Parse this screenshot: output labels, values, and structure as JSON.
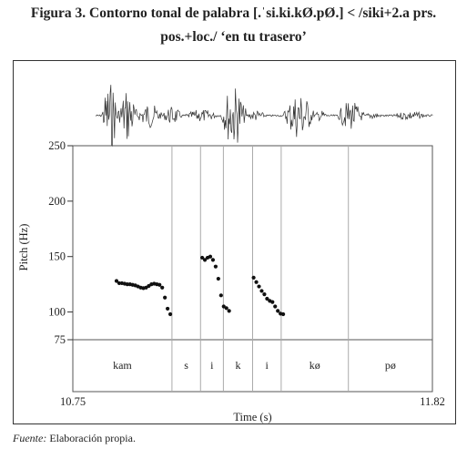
{
  "figure": {
    "title_line1": "Figura 3. Contorno tonal de palabra [.ˈsi.ki.kØ.pØ.] < /siki+2.a prs.",
    "title_line2": "pos.+loc./ ‘en tu trasero’"
  },
  "source": {
    "label": "Fuente:",
    "text": " Elaboración propia."
  },
  "chart_data": {
    "type": "scatter",
    "xlabel": "Time (s)",
    "ylabel": "Pitch (Hz)",
    "xlim": [
      10.75,
      11.82
    ],
    "ylim": [
      75,
      250
    ],
    "x_tick_labels": [
      "10.75",
      "11.82"
    ],
    "y_ticks": [
      75,
      100,
      150,
      200,
      250
    ],
    "segment_boundaries": [
      11.045,
      11.13,
      11.198,
      11.285,
      11.37,
      11.57
    ],
    "segments": [
      {
        "label": "kam",
        "start": 10.75,
        "end": 11.045
      },
      {
        "label": "s",
        "start": 11.045,
        "end": 11.13
      },
      {
        "label": "i",
        "start": 11.13,
        "end": 11.198
      },
      {
        "label": "k",
        "start": 11.198,
        "end": 11.285
      },
      {
        "label": "i",
        "start": 11.285,
        "end": 11.37
      },
      {
        "label": "kø",
        "start": 11.37,
        "end": 11.57
      },
      {
        "label": "pø",
        "start": 11.57,
        "end": 11.82
      }
    ],
    "series": [
      {
        "points": [
          [
            10.88,
            128
          ],
          [
            10.888,
            126
          ],
          [
            10.896,
            126
          ],
          [
            10.904,
            125.5
          ],
          [
            10.912,
            125
          ],
          [
            10.92,
            125
          ],
          [
            10.928,
            124.5
          ],
          [
            10.936,
            124
          ],
          [
            10.944,
            123
          ],
          [
            10.952,
            122
          ],
          [
            10.96,
            121.5
          ],
          [
            10.968,
            122
          ],
          [
            10.976,
            123.5
          ],
          [
            10.984,
            125
          ],
          [
            10.992,
            125.5
          ],
          [
            11.0,
            125
          ],
          [
            11.008,
            124.5
          ],
          [
            11.016,
            122
          ],
          [
            11.024,
            113
          ],
          [
            11.032,
            103
          ],
          [
            11.04,
            98
          ],
          [
            11.135,
            149
          ],
          [
            11.143,
            147
          ],
          [
            11.151,
            149
          ],
          [
            11.159,
            150
          ],
          [
            11.167,
            147
          ],
          [
            11.175,
            141
          ],
          [
            11.183,
            130
          ],
          [
            11.191,
            115
          ],
          [
            11.199,
            105
          ],
          [
            11.207,
            103.5
          ],
          [
            11.215,
            101
          ],
          [
            11.288,
            131
          ],
          [
            11.296,
            127
          ],
          [
            11.304,
            123
          ],
          [
            11.312,
            119
          ],
          [
            11.32,
            116
          ],
          [
            11.328,
            112
          ],
          [
            11.336,
            110
          ],
          [
            11.344,
            109
          ],
          [
            11.352,
            105
          ],
          [
            11.36,
            101
          ],
          [
            11.368,
            98.5
          ],
          [
            11.376,
            98
          ]
        ]
      }
    ]
  }
}
